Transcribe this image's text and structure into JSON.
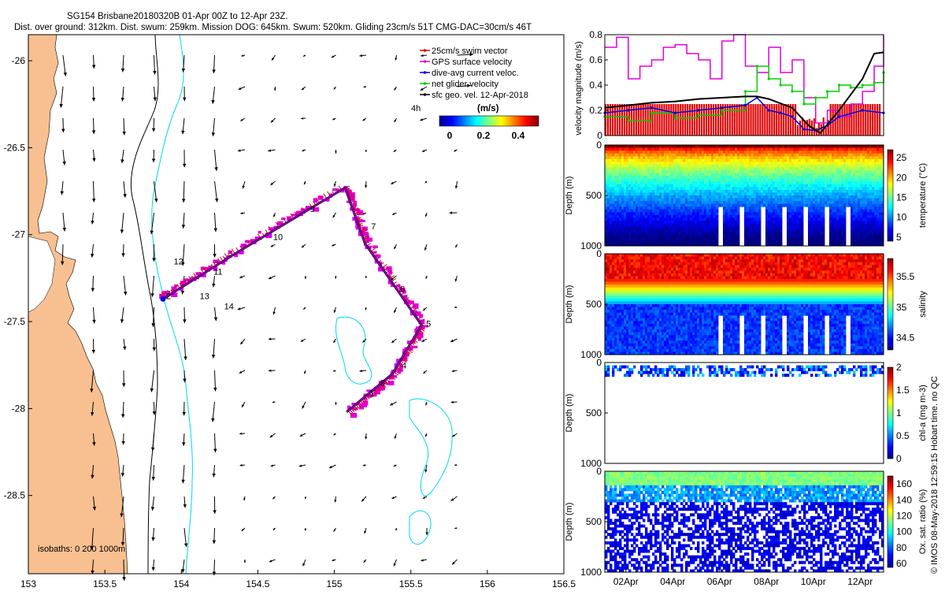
{
  "header": {
    "title_line1": "SG154 Brisbane20180320B 01-Apr 00Z to 12-Apr 23Z.",
    "title_line2": "Dist. over ground: 312km. Dist. swum: 259km. Mission DOG: 645km. Swum: 520km. Gliding 23cm/s 51T CMG-DAC=30cm/s 46T"
  },
  "footer_note": "© IMOS 08-May-2018 12:59:15 Hobart time. no QC",
  "chart_data": [
    {
      "type": "scatter",
      "name": "glider-track-map",
      "xlim": [
        153,
        156.5
      ],
      "ylim": [
        -28.95,
        -25.85
      ],
      "xticks": [
        "153",
        "153.5",
        "154",
        "154.5",
        "155",
        "155.5",
        "156",
        "156.5"
      ],
      "yticks": [
        "-26",
        "-26.5",
        "-27",
        "-27.5",
        "-28",
        "-28.5"
      ],
      "legend": {
        "placement": "top-right",
        "entries": [
          {
            "label": "25cm/s swim vector",
            "color": "#e00000"
          },
          {
            "label": "GPS surface velocity",
            "color": "#e000e0"
          },
          {
            "label": "dive-avg current veloc.",
            "color": "#0000e0"
          },
          {
            "label": "net glider velocity",
            "color": "#00d000"
          },
          {
            "label": "sfc geo. vel. 12-Apr-2018",
            "color": "#000000"
          }
        ]
      },
      "colorbar": {
        "units": "(m/s)",
        "ticks": [
          "0",
          "0.2",
          "0.4"
        ],
        "prefix_label": "4h"
      },
      "isobaths_label": "isobaths: 0   200  1000m",
      "track_waypoints": [
        {
          "lon": 153.88,
          "lat": -27.37
        },
        {
          "lon": 154.35,
          "lat": -27.11
        },
        {
          "lon": 155.07,
          "lat": -26.73
        },
        {
          "lon": 155.2,
          "lat": -27.05
        },
        {
          "lon": 155.57,
          "lat": -27.52
        },
        {
          "lon": 155.38,
          "lat": -27.8
        },
        {
          "lon": 155.08,
          "lat": -28.02
        }
      ],
      "day_labels": [
        {
          "text": "1",
          "lon": 155.23,
          "lat": -27.93
        },
        {
          "text": "2",
          "lon": 153.9,
          "lat": -27.37
        },
        {
          "text": "3",
          "lon": 155.3,
          "lat": -27.87
        },
        {
          "text": "4",
          "lon": 155.44,
          "lat": -27.77
        },
        {
          "text": "5",
          "lon": 155.6,
          "lat": -27.53
        },
        {
          "text": "6",
          "lon": 155.43,
          "lat": -27.33
        },
        {
          "text": "7",
          "lon": 155.24,
          "lat": -26.97
        },
        {
          "text": "9",
          "lon": 154.84,
          "lat": -26.87
        },
        {
          "text": "10",
          "lon": 154.6,
          "lat": -27.03
        },
        {
          "text": "11",
          "lon": 154.21,
          "lat": -27.23
        },
        {
          "text": "12",
          "lon": 153.95,
          "lat": -27.17
        },
        {
          "text": "13",
          "lon": 154.12,
          "lat": -27.37
        },
        {
          "text": "14",
          "lon": 154.28,
          "lat": -27.43
        }
      ]
    },
    {
      "type": "line",
      "name": "velocity-magnitude",
      "ylabel": "velocity magnitude (m/s)",
      "ylim": [
        0,
        0.8
      ],
      "yticks": [
        "0",
        "0.2",
        "0.4",
        "0.6",
        "0.8"
      ],
      "x_days": [
        1,
        12.9
      ],
      "series": [
        {
          "name": "GPS surface velocity",
          "color": "#e000e0",
          "x": [
            1,
            1.5,
            2,
            2.5,
            3,
            3.5,
            4,
            4.5,
            5,
            5.5,
            6,
            6.5,
            7,
            7.5,
            8,
            8.5,
            9,
            9.5,
            10,
            10.5,
            11,
            11.5,
            12,
            12.5,
            12.9
          ],
          "values": [
            0.7,
            0.78,
            0.45,
            0.55,
            0.6,
            0.7,
            0.72,
            0.65,
            0.6,
            0.45,
            0.75,
            0.8,
            0.55,
            0.5,
            0.7,
            0.5,
            0.6,
            0.3,
            0.1,
            0.2,
            0.15,
            0.25,
            0.35,
            0.55,
            0.8
          ]
        },
        {
          "name": "net glider velocity",
          "color": "#00d000",
          "x": [
            1,
            2,
            3,
            4,
            5,
            6,
            7,
            7.5,
            8,
            8.5,
            9,
            9.5,
            10,
            10.5,
            11,
            11.5,
            12,
            12.5,
            12.9
          ],
          "values": [
            0.15,
            0.12,
            0.18,
            0.14,
            0.16,
            0.2,
            0.35,
            0.55,
            0.45,
            0.4,
            0.35,
            0.25,
            0.3,
            0.35,
            0.4,
            0.38,
            0.4,
            0.42,
            0.5
          ]
        },
        {
          "name": "dive-avg current veloc.",
          "color": "#0000e0",
          "x": [
            1,
            2,
            3,
            4,
            5,
            6,
            7,
            7.5,
            8,
            8.5,
            9,
            9.5,
            10,
            10.5,
            11,
            12,
            12.9
          ],
          "values": [
            0.18,
            0.2,
            0.22,
            0.18,
            0.2,
            0.22,
            0.24,
            0.3,
            0.2,
            0.18,
            0.15,
            0.05,
            0.04,
            0.08,
            0.15,
            0.2,
            0.18
          ]
        },
        {
          "name": "sfc geo. vel.",
          "color": "#000000",
          "x": [
            1,
            2,
            3,
            4,
            5,
            6,
            7,
            7.5,
            8,
            9,
            9.7,
            10.2,
            11,
            12,
            12.5,
            12.9
          ],
          "values": [
            0.22,
            0.24,
            0.26,
            0.27,
            0.29,
            0.3,
            0.31,
            0.31,
            0.29,
            0.22,
            0.08,
            0.02,
            0.2,
            0.45,
            0.65,
            0.66
          ]
        }
      ],
      "swim_bar_value": 0.25
    },
    {
      "type": "heatmap",
      "name": "temperature-section",
      "ylabel": "Depth (m)",
      "yticks": [
        "0",
        "500",
        "1000"
      ],
      "colorbar_label": "temperature (°C)",
      "colorbar_ticks": [
        "25",
        "20",
        "15",
        "10",
        "5"
      ],
      "crange": [
        4,
        27
      ]
    },
    {
      "type": "heatmap",
      "name": "salinity-section",
      "ylabel": "Depth (m)",
      "yticks": [
        "0",
        "500",
        "1000"
      ],
      "colorbar_label": "salinity",
      "colorbar_ticks": [
        "35.5",
        "35",
        "34.5"
      ],
      "crange": [
        34.3,
        35.8
      ]
    },
    {
      "type": "heatmap",
      "name": "chlorophyll-section",
      "ylabel": "Depth (m)",
      "yticks": [
        "0",
        "500",
        "1000"
      ],
      "colorbar_label": "chl-a (mg m-3)",
      "colorbar_ticks": [
        "2",
        "1.5",
        "1",
        "0.5",
        "0"
      ],
      "crange": [
        0,
        2
      ]
    },
    {
      "type": "heatmap",
      "name": "oxygen-section",
      "ylabel": "Depth (m)",
      "yticks": [
        "0",
        "500",
        "1000"
      ],
      "xticks": [
        "02Apr",
        "04Apr",
        "06Apr",
        "08Apr",
        "10Apr",
        "12Apr"
      ],
      "colorbar_label": "Ox. sat. ratio (%)",
      "colorbar_ticks": [
        "160",
        "140",
        "120",
        "100",
        "80",
        "60"
      ],
      "crange": [
        55,
        170
      ]
    }
  ]
}
